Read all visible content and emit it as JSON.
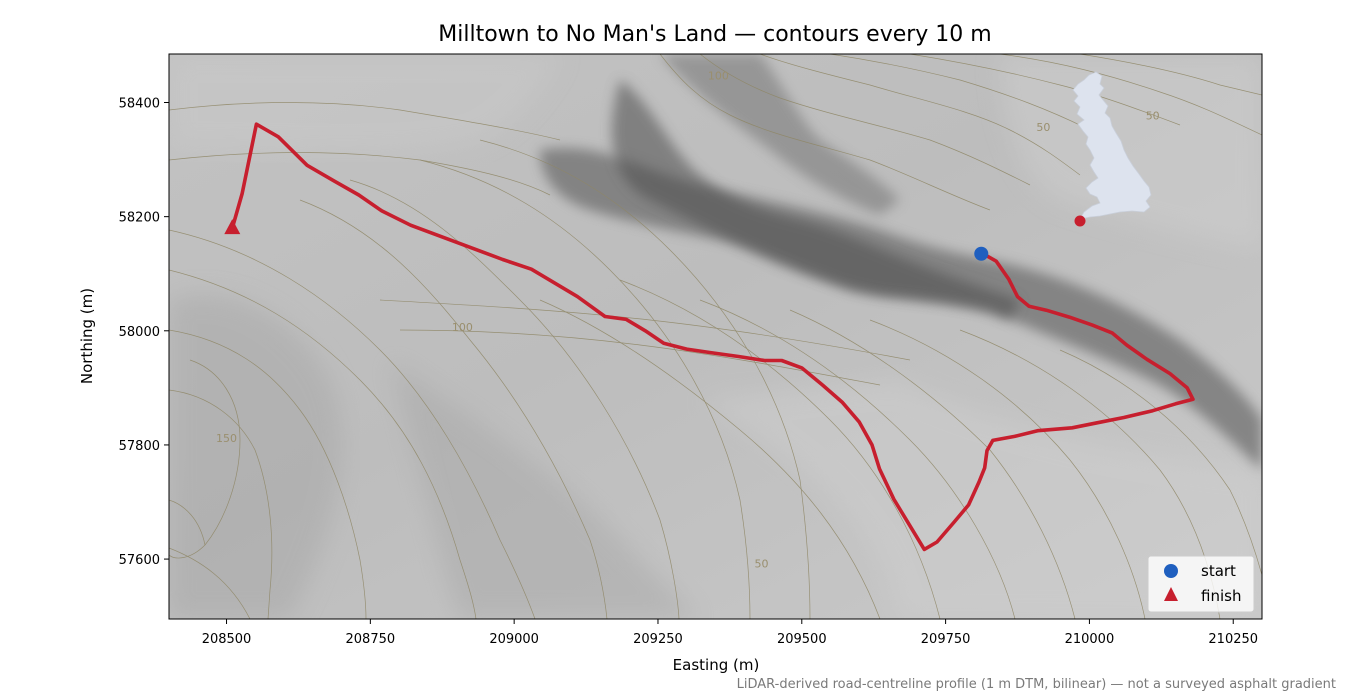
{
  "chart_data": {
    "type": "map",
    "title": "Milltown to No Man's Land — contours every 10 m",
    "xlabel": "Easting (m)",
    "ylabel": "Northing (m)",
    "footnote": "LiDAR-derived road-centreline profile (1 m DTM, bilinear) — not a surveyed asphalt gradient",
    "xlim": [
      208400,
      210300
    ],
    "ylim": [
      57495,
      58485
    ],
    "xticks": [
      208500,
      208750,
      209000,
      209250,
      209500,
      209750,
      210000,
      210250
    ],
    "yticks": [
      57600,
      57800,
      58000,
      58200,
      58400
    ],
    "contour_interval_m": 10,
    "contour_labels": [
      {
        "text": "100",
        "x": 209355,
        "y": 58440
      },
      {
        "text": "50",
        "x": 209920,
        "y": 58350
      },
      {
        "text": "50",
        "x": 210110,
        "y": 58370
      },
      {
        "text": "100",
        "x": 208910,
        "y": 58000
      },
      {
        "text": "150",
        "x": 208500,
        "y": 57805
      },
      {
        "text": "50",
        "x": 209430,
        "y": 57585
      }
    ],
    "route": {
      "color": "#c71f2e",
      "points": [
        [
          208510,
          58180
        ],
        [
          208527,
          58240
        ],
        [
          208552,
          58362
        ],
        [
          208590,
          58340
        ],
        [
          208640,
          58290
        ],
        [
          208688,
          58262
        ],
        [
          208730,
          58238
        ],
        [
          208770,
          58210
        ],
        [
          208820,
          58185
        ],
        [
          208900,
          58155
        ],
        [
          208980,
          58125
        ],
        [
          209030,
          58108
        ],
        [
          209110,
          58060
        ],
        [
          209158,
          58025
        ],
        [
          209195,
          58020
        ],
        [
          209228,
          58000
        ],
        [
          209260,
          57978
        ],
        [
          209300,
          57968
        ],
        [
          209340,
          57962
        ],
        [
          209390,
          57955
        ],
        [
          209435,
          57948
        ],
        [
          209465,
          57948
        ],
        [
          209500,
          57935
        ],
        [
          209536,
          57905
        ],
        [
          209570,
          57875
        ],
        [
          209600,
          57840
        ],
        [
          209622,
          57800
        ],
        [
          209635,
          57758
        ],
        [
          209660,
          57705
        ],
        [
          209690,
          57655
        ],
        [
          209713,
          57617
        ],
        [
          209735,
          57630
        ],
        [
          209765,
          57665
        ],
        [
          209790,
          57695
        ],
        [
          209808,
          57735
        ],
        [
          209818,
          57760
        ],
        [
          209822,
          57790
        ],
        [
          209832,
          57808
        ],
        [
          209870,
          57815
        ],
        [
          209910,
          57825
        ],
        [
          209970,
          57830
        ],
        [
          210010,
          57838
        ],
        [
          210060,
          57848
        ],
        [
          210110,
          57860
        ],
        [
          210150,
          57872
        ],
        [
          210180,
          57880
        ],
        [
          210170,
          57900
        ],
        [
          210140,
          57925
        ],
        [
          210100,
          57950
        ],
        [
          210065,
          57975
        ],
        [
          210040,
          57996
        ],
        [
          210005,
          58010
        ],
        [
          209965,
          58024
        ],
        [
          209925,
          58036
        ],
        [
          209895,
          58043
        ],
        [
          209875,
          58060
        ],
        [
          209860,
          58090
        ],
        [
          209838,
          58122
        ],
        [
          209815,
          58135
        ]
      ]
    },
    "markers": [
      {
        "label": "start",
        "shape": "circle",
        "color": "#1f5fbf",
        "x": 209812,
        "y": 58135
      },
      {
        "label": "finish",
        "shape": "triangle",
        "color": "#c71f2e",
        "x": 208510,
        "y": 58180
      }
    ],
    "legend": {
      "location": "bottom-right",
      "entries": [
        "start",
        "finish"
      ]
    },
    "inset": {
      "description": "locator map of Great Britain",
      "land_color": "#dde3ee",
      "location_marker_color": "#c71f2e"
    },
    "hillshade_colors": {
      "light": "#d3d3d3",
      "mid": "#a4a4a4",
      "dark": "#5a5a5a"
    },
    "contour_color": "#8f8766"
  }
}
